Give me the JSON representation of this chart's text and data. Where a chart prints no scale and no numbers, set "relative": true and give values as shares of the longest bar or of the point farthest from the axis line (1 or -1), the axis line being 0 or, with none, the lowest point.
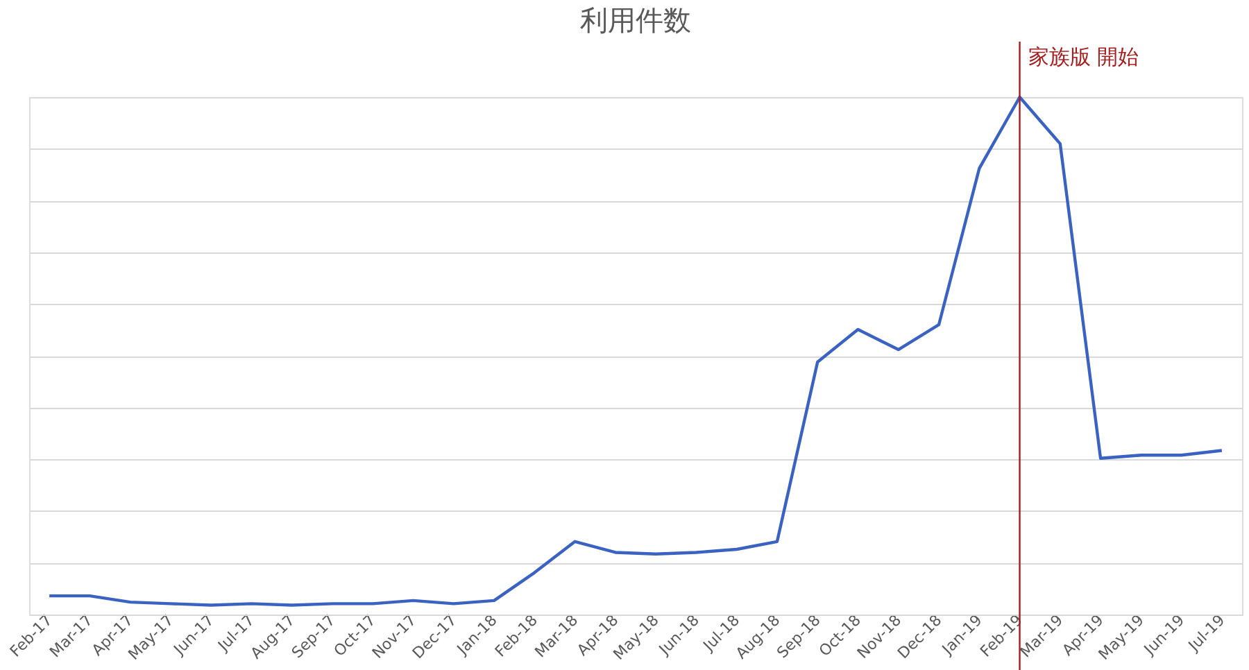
{
  "chart_data": {
    "type": "line",
    "title": "利用件数",
    "relative": true,
    "grid": "y",
    "marker": "none",
    "line_style": "solid",
    "categories": [
      "Feb-17",
      "Mar-17",
      "Apr-17",
      "May-17",
      "Jun-17",
      "Jul-17",
      "Aug-17",
      "Sep-17",
      "Oct-17",
      "Nov-17",
      "Dec-17",
      "Jan-18",
      "Feb-18",
      "Mar-18",
      "Apr-18",
      "May-18",
      "Jun-18",
      "Jul-18",
      "Aug-18",
      "Sep-18",
      "Oct-18",
      "Nov-18",
      "Dec-18",
      "Jan-19",
      "Feb-19",
      "Mar-19",
      "Apr-19",
      "May-19",
      "Jun-19",
      "Jul-19"
    ],
    "series": [
      {
        "color": "#3a62c0",
        "values": [
          0.036,
          0.036,
          0.024,
          0.021,
          0.018,
          0.021,
          0.018,
          0.021,
          0.021,
          0.027,
          0.021,
          0.027,
          0.081,
          0.141,
          0.12,
          0.117,
          0.12,
          0.126,
          0.141,
          0.488,
          0.551,
          0.512,
          0.56,
          0.862,
          1,
          0.91,
          0.302,
          0.308,
          0.308,
          0.317
        ]
      }
    ],
    "ref_lines": [
      {
        "axis": "x",
        "value": "Feb-19",
        "label": "家族版 開始",
        "color": "#a31f1f"
      }
    ]
  }
}
